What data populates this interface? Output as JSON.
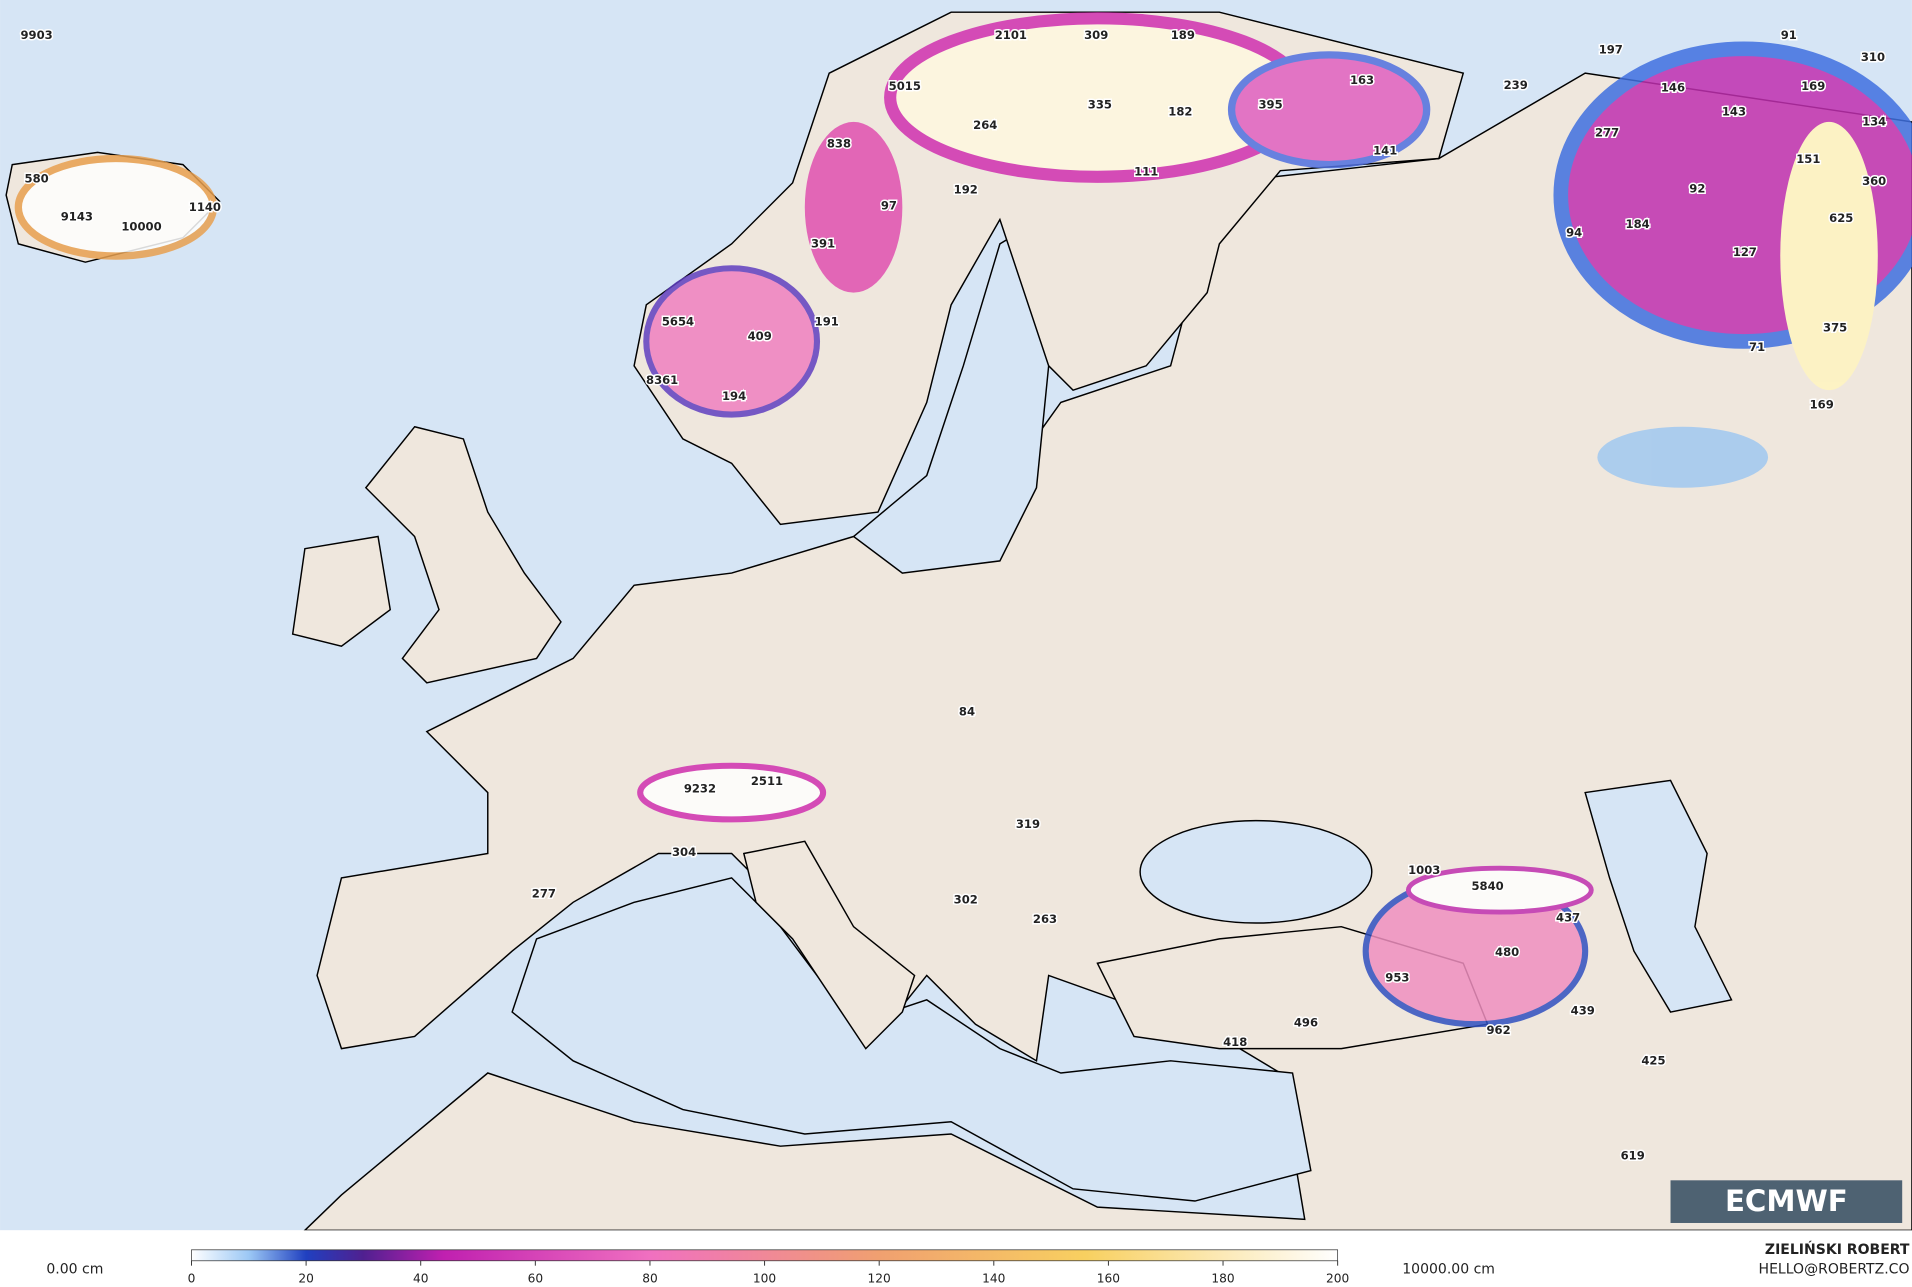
{
  "map": {
    "labels": [
      9903,
      580,
      9143,
      10000,
      1140,
      2101,
      309,
      189,
      5015,
      335,
      182,
      395,
      163,
      264,
      838,
      111,
      141,
      192,
      97,
      391,
      191,
      5654,
      409,
      8361,
      194,
      197,
      239,
      91,
      310,
      146,
      169,
      143,
      134,
      277,
      151,
      360,
      92,
      625,
      184,
      94,
      127,
      375,
      71,
      169,
      84,
      2511,
      9232,
      319,
      304,
      277,
      302,
      263,
      1003,
      5840,
      437,
      480,
      953,
      439,
      496,
      962,
      418,
      425,
      619
    ]
  },
  "legend": {
    "min_label": "0.00 cm",
    "max_label": "10000.00 cm",
    "lim": [
      0,
      200
    ],
    "ticks": [
      0,
      20,
      40,
      60,
      80,
      100,
      120,
      140,
      160,
      180,
      200
    ]
  },
  "credit": {
    "author": "ZIELIŃSKI ROBERT",
    "contact": "HELLO@ROBERTZ.CO"
  },
  "logo": "ECMWF"
}
